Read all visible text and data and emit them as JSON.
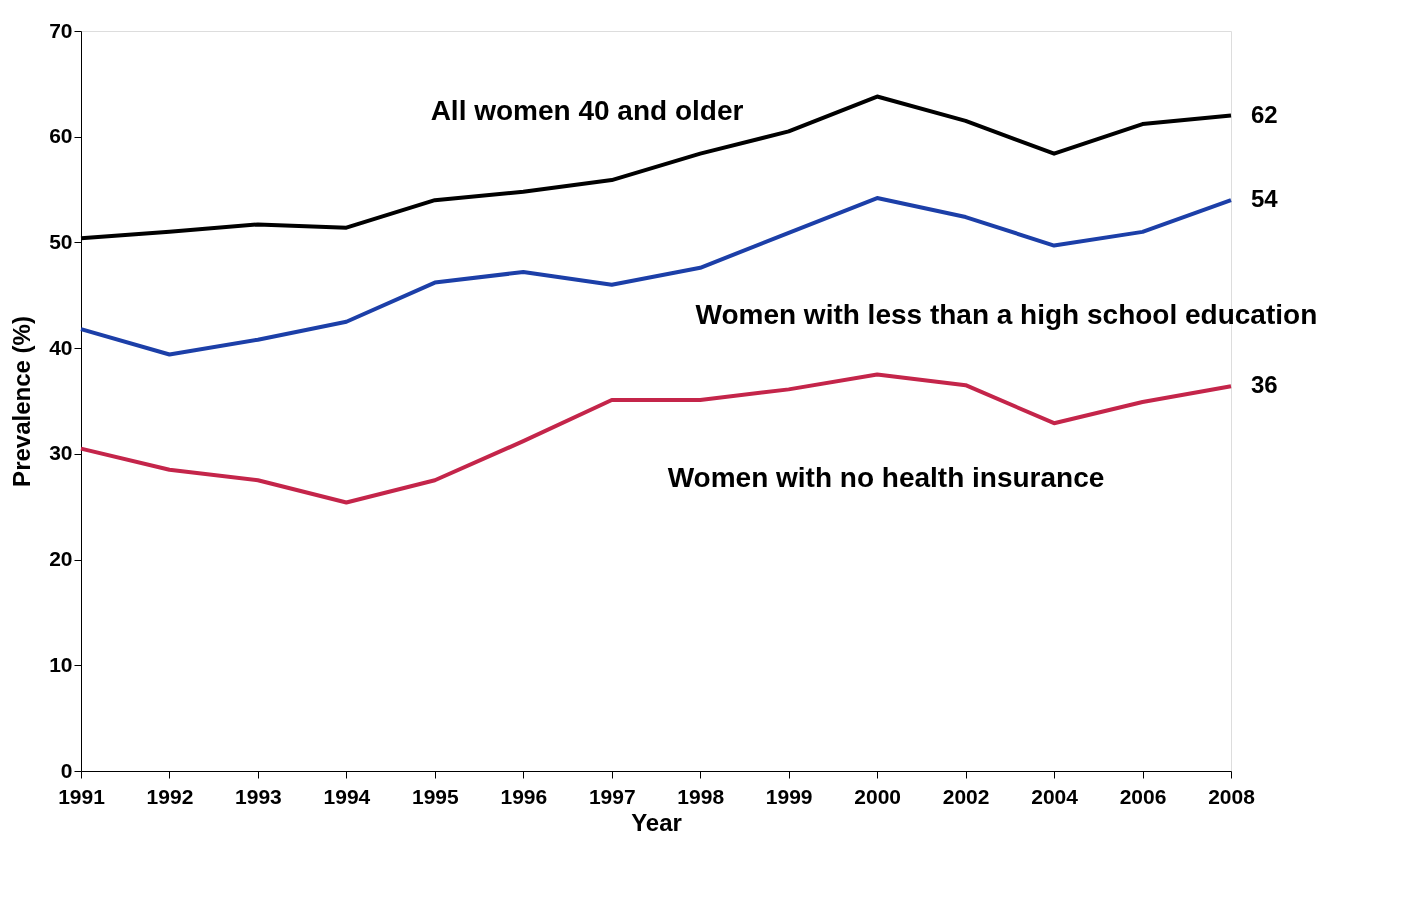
{
  "chart_data": {
    "type": "line",
    "xlabel": "Year",
    "ylabel": "Prevalence (%)",
    "categories": [
      "1991",
      "1992",
      "1993",
      "1994",
      "1995",
      "1996",
      "1997",
      "1998",
      "1999",
      "2000",
      "2002",
      "2004",
      "2006",
      "2008"
    ],
    "series": [
      {
        "name": "All women 40 and older",
        "color": "#000000",
        "values": [
          50.4,
          51.0,
          51.7,
          51.4,
          54.0,
          54.8,
          55.9,
          58.4,
          60.5,
          63.8,
          61.5,
          58.4,
          61.2,
          62.0
        ],
        "value_labels": [
          null,
          null,
          null,
          null,
          null,
          null,
          null,
          null,
          null,
          null,
          null,
          null,
          null,
          "62"
        ]
      },
      {
        "name": "Women with less than a high school education",
        "color": "#1c3fa8",
        "values": [
          41.8,
          39.4,
          40.8,
          42.5,
          46.2,
          47.2,
          46.0,
          47.6,
          50.9,
          54.2,
          52.4,
          49.7,
          51.0,
          54.0
        ],
        "value_labels": [
          null,
          null,
          null,
          null,
          null,
          null,
          null,
          null,
          null,
          null,
          null,
          null,
          null,
          "54"
        ]
      },
      {
        "name": "Women with no health insurance",
        "color": "#c4254a",
        "values": [
          30.5,
          28.5,
          27.5,
          25.4,
          27.5,
          31.2,
          35.1,
          35.1,
          36.1,
          37.5,
          36.5,
          32.9,
          34.9,
          36.4
        ],
        "value_labels": [
          null,
          null,
          null,
          null,
          null,
          null,
          null,
          null,
          null,
          null,
          null,
          null,
          null,
          "36"
        ]
      }
    ],
    "ylim": [
      0,
      70
    ],
    "yticks": [
      0,
      10,
      20,
      30,
      40,
      50,
      60,
      70
    ],
    "grid": false,
    "marker": "none",
    "line_style": "solid"
  }
}
